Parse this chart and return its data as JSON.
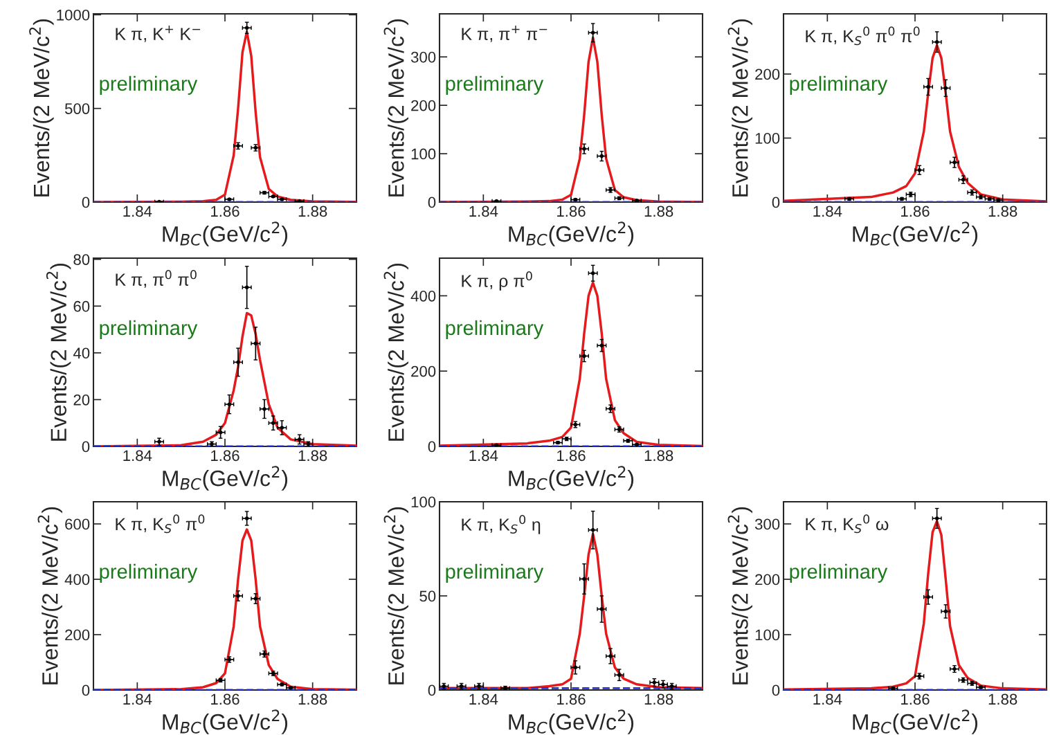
{
  "chart_data": [
    {
      "type": "scatter",
      "title": "K π, K$^{+}$ K$^{−}$",
      "xlabel": "M$_{BC}$(GeV/c$^{2}$)",
      "ylabel": "Events/(2 MeV/c$^{2}$)",
      "xlim": [
        1.83,
        1.89
      ],
      "xticks": [
        1.84,
        1.86,
        1.88
      ],
      "ylim": [
        0,
        1005
      ],
      "yticks": [
        0,
        500,
        1000
      ],
      "annotations": [
        "preliminary"
      ],
      "series": [
        {
          "marker": "circle",
          "color": "#000000",
          "x": [
            1.845,
            1.861,
            1.863,
            1.865,
            1.867,
            1.869,
            1.871,
            1.873,
            1.877
          ],
          "values": [
            2,
            15,
            300,
            930,
            290,
            50,
            30,
            15,
            5
          ],
          "errors": [
            2,
            4,
            17,
            30,
            17,
            7,
            5,
            4,
            2
          ],
          "xerrors": [
            0.001,
            0.001,
            0.001,
            0.001,
            0.001,
            0.001,
            0.001,
            0.001,
            0.001
          ]
        },
        {
          "type": "line",
          "color": "#e41a1c",
          "x": [
            1.83,
            1.85,
            1.855,
            1.858,
            1.86,
            1.862,
            1.863,
            1.864,
            1.865,
            1.866,
            1.867,
            1.868,
            1.87,
            1.872,
            1.875,
            1.88,
            1.89
          ],
          "values": [
            0,
            2,
            5,
            12,
            40,
            250,
            500,
            800,
            910,
            780,
            480,
            240,
            70,
            30,
            12,
            4,
            1
          ]
        },
        {
          "type": "line",
          "color": "#2233cc",
          "line_style": "dashed",
          "x": [
            1.83,
            1.89
          ],
          "values": [
            0,
            0
          ]
        }
      ]
    },
    {
      "type": "scatter",
      "title": "K π, π$^{+}$ π$^{−}$",
      "xlabel": "M$_{BC}$(GeV/c$^{2}$)",
      "ylabel": "Events/(2 MeV/c$^{2}$)",
      "xlim": [
        1.83,
        1.89
      ],
      "xticks": [
        1.84,
        1.86,
        1.88
      ],
      "ylim": [
        0,
        389
      ],
      "yticks": [
        0,
        100,
        200,
        300
      ],
      "annotations": [
        "preliminary"
      ],
      "series": [
        {
          "marker": "circle",
          "color": "#000000",
          "x": [
            1.843,
            1.861,
            1.863,
            1.865,
            1.867,
            1.869,
            1.871,
            1.875
          ],
          "values": [
            2,
            5,
            110,
            350,
            95,
            25,
            8,
            3
          ],
          "errors": [
            1.5,
            2,
            10,
            19,
            10,
            5,
            3,
            2
          ],
          "xerrors": [
            0.001,
            0.001,
            0.001,
            0.001,
            0.001,
            0.001,
            0.001,
            0.001
          ]
        },
        {
          "type": "line",
          "color": "#e41a1c",
          "x": [
            1.83,
            1.85,
            1.855,
            1.858,
            1.86,
            1.862,
            1.863,
            1.864,
            1.865,
            1.866,
            1.867,
            1.868,
            1.87,
            1.872,
            1.875,
            1.88,
            1.89
          ],
          "values": [
            0,
            1,
            2,
            5,
            15,
            90,
            180,
            290,
            340,
            290,
            180,
            90,
            25,
            10,
            4,
            1,
            0
          ]
        },
        {
          "type": "line",
          "color": "#2233cc",
          "line_style": "dashed",
          "x": [
            1.83,
            1.89
          ],
          "values": [
            0,
            0
          ]
        }
      ]
    },
    {
      "type": "scatter",
      "title": "K π, K$_{S}$$^{0}$ π$^{0}$ π$^{0}$",
      "xlabel": "M$_{BC}$(GeV/c$^{2}$)",
      "ylabel": "Events/(2 MeV/c$^{2}$)",
      "xlim": [
        1.83,
        1.89
      ],
      "xticks": [
        1.84,
        1.86,
        1.88
      ],
      "ylim": [
        0,
        294
      ],
      "yticks": [
        0,
        100,
        200
      ],
      "annotations": [
        "preliminary"
      ],
      "series": [
        {
          "marker": "circle",
          "color": "#000000",
          "x": [
            1.845,
            1.857,
            1.859,
            1.861,
            1.863,
            1.865,
            1.867,
            1.869,
            1.871,
            1.873,
            1.875,
            1.877,
            1.879
          ],
          "values": [
            5,
            5,
            12,
            50,
            180,
            250,
            178,
            62,
            35,
            15,
            8,
            5,
            3
          ],
          "errors": [
            2,
            2,
            3.5,
            7,
            13,
            16,
            13,
            8,
            6,
            4,
            3,
            2,
            2
          ],
          "xerrors": [
            0.001,
            0.001,
            0.001,
            0.001,
            0.001,
            0.001,
            0.001,
            0.001,
            0.001,
            0.001,
            0.001,
            0.001,
            0.001
          ]
        },
        {
          "type": "line",
          "color": "#e41a1c",
          "x": [
            1.83,
            1.85,
            1.855,
            1.858,
            1.86,
            1.862,
            1.863,
            1.864,
            1.865,
            1.866,
            1.867,
            1.868,
            1.87,
            1.872,
            1.875,
            1.88,
            1.89
          ],
          "values": [
            2,
            8,
            15,
            25,
            45,
            110,
            170,
            225,
            245,
            225,
            170,
            110,
            55,
            30,
            12,
            4,
            1
          ]
        },
        {
          "type": "line",
          "color": "#2233cc",
          "line_style": "dashed",
          "x": [
            1.83,
            1.89
          ],
          "values": [
            0,
            0
          ]
        }
      ]
    },
    {
      "type": "scatter",
      "title": "K π, π$^{0}$ π$^{0}$",
      "xlabel": "M$_{BC}$(GeV/c$^{2}$)",
      "ylabel": "Events/(2 MeV/c$^{2}$)",
      "xlim": [
        1.83,
        1.89
      ],
      "xticks": [
        1.84,
        1.86,
        1.88
      ],
      "ylim": [
        0,
        80.5
      ],
      "yticks": [
        0,
        20,
        40,
        60,
        80
      ],
      "annotations": [
        "preliminary"
      ],
      "series": [
        {
          "marker": "circle",
          "color": "#000000",
          "x": [
            1.845,
            1.857,
            1.859,
            1.861,
            1.863,
            1.865,
            1.867,
            1.869,
            1.871,
            1.873,
            1.877,
            1.879
          ],
          "values": [
            2,
            1,
            6,
            18,
            36,
            68,
            44,
            16,
            10,
            8,
            3,
            1
          ],
          "errors": [
            1.5,
            1,
            2.5,
            4,
            6,
            9,
            7,
            4,
            3,
            3,
            2,
            1
          ],
          "xerrors": [
            0.001,
            0.001,
            0.001,
            0.001,
            0.001,
            0.001,
            0.001,
            0.001,
            0.001,
            0.001,
            0.001,
            0.001
          ]
        },
        {
          "type": "line",
          "color": "#e41a1c",
          "x": [
            1.83,
            1.85,
            1.855,
            1.858,
            1.86,
            1.862,
            1.863,
            1.864,
            1.865,
            1.866,
            1.867,
            1.868,
            1.87,
            1.872,
            1.875,
            1.88,
            1.89
          ],
          "values": [
            0,
            0.5,
            2,
            5,
            10,
            24,
            34,
            47,
            57,
            56,
            48,
            37,
            18,
            8,
            3,
            1,
            0.3
          ]
        },
        {
          "type": "line",
          "color": "#2233cc",
          "line_style": "dashed",
          "x": [
            1.83,
            1.89
          ],
          "values": [
            0,
            0
          ]
        }
      ]
    },
    {
      "type": "scatter",
      "title": "K π, ρ π$^{0}$",
      "xlabel": "M$_{BC}$(GeV/c$^{2}$)",
      "ylabel": "Events/(2 MeV/c$^{2}$)",
      "xlim": [
        1.83,
        1.89
      ],
      "xticks": [
        1.84,
        1.86,
        1.88
      ],
      "ylim": [
        0,
        500
      ],
      "yticks": [
        0,
        200,
        400
      ],
      "annotations": [
        "preliminary"
      ],
      "series": [
        {
          "marker": "circle",
          "color": "#000000",
          "x": [
            1.843,
            1.857,
            1.859,
            1.861,
            1.863,
            1.865,
            1.867,
            1.869,
            1.871,
            1.873,
            1.875
          ],
          "values": [
            3,
            10,
            20,
            58,
            240,
            460,
            268,
            100,
            45,
            15,
            5
          ],
          "errors": [
            2,
            3,
            4.5,
            8,
            15,
            21,
            16,
            10,
            7,
            4,
            2
          ],
          "xerrors": [
            0.001,
            0.001,
            0.001,
            0.001,
            0.001,
            0.001,
            0.001,
            0.001,
            0.001,
            0.001,
            0.001
          ]
        },
        {
          "type": "line",
          "color": "#e41a1c",
          "x": [
            1.83,
            1.85,
            1.855,
            1.858,
            1.86,
            1.862,
            1.863,
            1.864,
            1.865,
            1.866,
            1.867,
            1.868,
            1.87,
            1.872,
            1.875,
            1.88,
            1.89
          ],
          "values": [
            2,
            8,
            15,
            25,
            50,
            180,
            300,
            400,
            435,
            400,
            300,
            180,
            70,
            35,
            12,
            4,
            1
          ]
        },
        {
          "type": "line",
          "color": "#2233cc",
          "line_style": "dashed",
          "x": [
            1.83,
            1.89
          ],
          "values": [
            0,
            0
          ]
        }
      ]
    },
    {
      "type": "scatter",
      "title": "K π, K$_{S}$$^{0}$ π$^{0}$",
      "xlabel": "M$_{BC}$(GeV/c$^{2}$)",
      "ylabel": "Events/(2 MeV/c$^{2}$)",
      "xlim": [
        1.83,
        1.89
      ],
      "xticks": [
        1.84,
        1.86,
        1.88
      ],
      "ylim": [
        0,
        680
      ],
      "yticks": [
        0,
        200,
        400,
        600
      ],
      "annotations": [
        "preliminary"
      ],
      "series": [
        {
          "marker": "circle",
          "color": "#000000",
          "x": [
            1.859,
            1.861,
            1.863,
            1.865,
            1.867,
            1.869,
            1.871,
            1.873,
            1.875
          ],
          "values": [
            35,
            110,
            340,
            620,
            330,
            130,
            60,
            20,
            8
          ],
          "errors": [
            6,
            10,
            18,
            25,
            18,
            11,
            8,
            4.5,
            3
          ],
          "xerrors": [
            0.001,
            0.001,
            0.001,
            0.001,
            0.001,
            0.001,
            0.001,
            0.001,
            0.001
          ]
        },
        {
          "type": "line",
          "color": "#e41a1c",
          "x": [
            1.83,
            1.85,
            1.855,
            1.858,
            1.86,
            1.862,
            1.863,
            1.864,
            1.865,
            1.866,
            1.867,
            1.868,
            1.87,
            1.872,
            1.875,
            1.88,
            1.89
          ],
          "values": [
            0,
            3,
            10,
            25,
            60,
            230,
            400,
            540,
            580,
            540,
            400,
            230,
            90,
            40,
            12,
            3,
            1
          ]
        },
        {
          "type": "line",
          "color": "#2233cc",
          "line_style": "dashed",
          "x": [
            1.83,
            1.89
          ],
          "values": [
            0,
            0
          ]
        }
      ]
    },
    {
      "type": "scatter",
      "title": "K π, K$_{S}$$^{0}$ η",
      "xlabel": "M$_{BC}$(GeV/c$^{2}$)",
      "ylabel": "Events/(2 MeV/c$^{2}$)",
      "xlim": [
        1.83,
        1.89
      ],
      "xticks": [
        1.84,
        1.86,
        1.88
      ],
      "ylim": [
        0,
        100
      ],
      "yticks": [
        0,
        50,
        100
      ],
      "annotations": [
        "preliminary"
      ],
      "series": [
        {
          "marker": "circle",
          "color": "#000000",
          "x": [
            1.831,
            1.835,
            1.839,
            1.845,
            1.861,
            1.863,
            1.865,
            1.867,
            1.869,
            1.871,
            1.879,
            1.881,
            1.883
          ],
          "values": [
            2,
            2,
            2,
            1,
            12,
            59,
            85,
            43,
            18,
            8,
            4,
            3,
            2
          ],
          "errors": [
            1.5,
            1.5,
            1.5,
            1,
            3.5,
            8,
            10,
            7,
            4,
            3,
            2,
            2,
            1.5
          ],
          "xerrors": [
            0.001,
            0.001,
            0.001,
            0.001,
            0.001,
            0.001,
            0.001,
            0.001,
            0.001,
            0.001,
            0.001,
            0.001,
            0.001
          ]
        },
        {
          "type": "line",
          "color": "#e41a1c",
          "x": [
            1.83,
            1.85,
            1.855,
            1.858,
            1.86,
            1.862,
            1.863,
            1.864,
            1.865,
            1.866,
            1.867,
            1.868,
            1.87,
            1.872,
            1.875,
            1.88,
            1.89
          ],
          "values": [
            1,
            1,
            2,
            3,
            6,
            30,
            50,
            72,
            83,
            72,
            50,
            30,
            12,
            6,
            3,
            1.5,
            1
          ]
        },
        {
          "type": "line",
          "color": "#2233cc",
          "line_style": "dashed",
          "x": [
            1.83,
            1.89
          ],
          "values": [
            1,
            1
          ]
        }
      ]
    },
    {
      "type": "scatter",
      "title": "K π, K$_{S}$$^{0}$ ω",
      "xlabel": "M$_{BC}$(GeV/c$^{2}$)",
      "ylabel": "Events/(2 MeV/c$^{2}$)",
      "xlim": [
        1.83,
        1.89
      ],
      "xticks": [
        1.84,
        1.86,
        1.88
      ],
      "ylim": [
        0,
        340
      ],
      "yticks": [
        0,
        100,
        200,
        300
      ],
      "annotations": [
        "preliminary"
      ],
      "series": [
        {
          "marker": "circle",
          "color": "#000000",
          "x": [
            1.855,
            1.861,
            1.863,
            1.865,
            1.867,
            1.869,
            1.871,
            1.873,
            1.875
          ],
          "values": [
            3,
            25,
            168,
            310,
            142,
            38,
            18,
            12,
            5
          ],
          "errors": [
            2,
            5,
            13,
            18,
            12,
            6,
            4,
            3.5,
            2
          ],
          "xerrors": [
            0.001,
            0.001,
            0.001,
            0.001,
            0.001,
            0.001,
            0.001,
            0.001,
            0.001
          ]
        },
        {
          "type": "line",
          "color": "#e41a1c",
          "x": [
            1.83,
            1.85,
            1.855,
            1.858,
            1.86,
            1.862,
            1.863,
            1.864,
            1.865,
            1.866,
            1.867,
            1.868,
            1.87,
            1.872,
            1.875,
            1.88,
            1.89
          ],
          "values": [
            1,
            3,
            6,
            12,
            25,
            120,
            210,
            285,
            305,
            280,
            200,
            115,
            45,
            22,
            8,
            3,
            1
          ]
        },
        {
          "type": "line",
          "color": "#2233cc",
          "line_style": "dashed",
          "x": [
            1.83,
            1.89
          ],
          "values": [
            0,
            0
          ]
        }
      ]
    }
  ]
}
